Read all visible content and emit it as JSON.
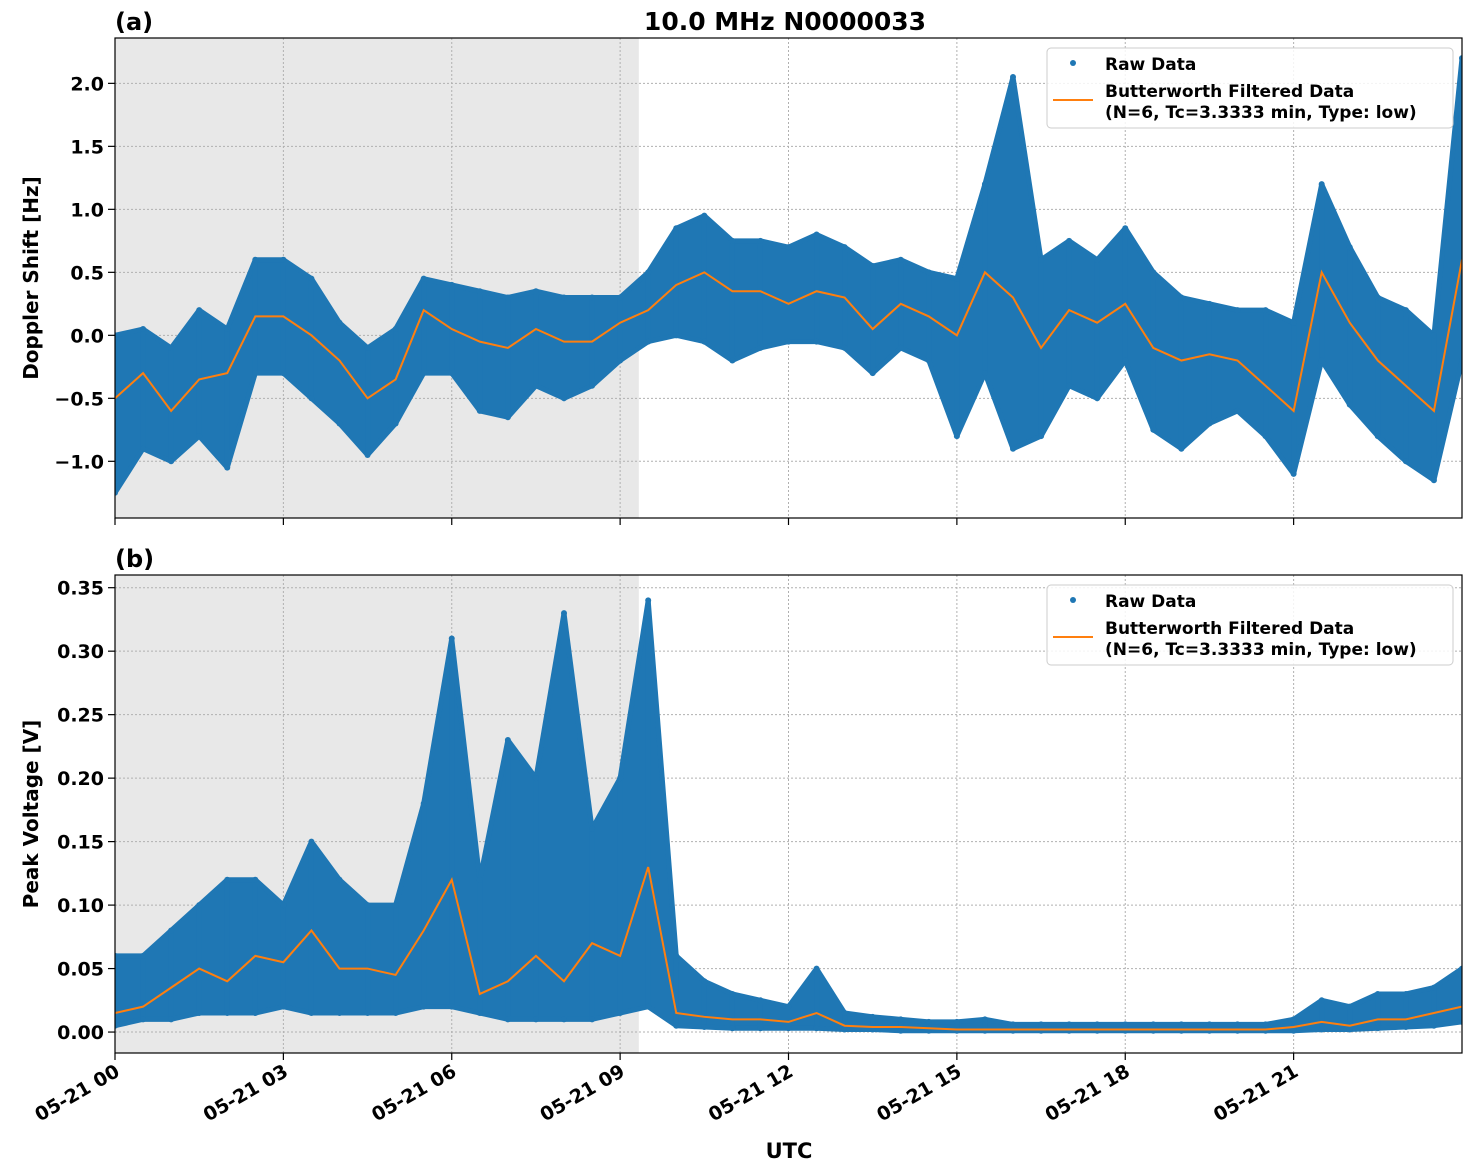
{
  "figure": {
    "title": "10.0 MHz N0000033",
    "xlabel": "UTC",
    "colors": {
      "raw": "#1f77b4",
      "filtered": "#ff7f0e",
      "shade": "#e8e8e8",
      "grid": "#b0b0b0"
    }
  },
  "chart_data": [
    {
      "type": "scatter",
      "panel_label": "(a)",
      "ylabel": "Doppler Shift [Hz]",
      "xlim": [
        "05-21 00:00",
        "05-22 00:00"
      ],
      "ylim": [
        -1.45,
        2.36
      ],
      "grid": true,
      "legend_placement": "top-right",
      "shaded_interval": [
        "05-21 00:00",
        "05-21 09:20"
      ],
      "x_ticks": [
        "05-21 00",
        "05-21 03",
        "05-21 06",
        "05-21 09",
        "05-21 12",
        "05-21 15",
        "05-21 18",
        "05-21 21"
      ],
      "y_ticks": [
        "−1.0",
        "−0.5",
        "0.0",
        "0.5",
        "1.0",
        "1.5",
        "2.0"
      ],
      "y_tick_values": [
        -1.0,
        -0.5,
        0.0,
        0.5,
        1.0,
        1.5,
        2.0
      ],
      "x_hours_utc": [
        0,
        0.5,
        1,
        1.5,
        2,
        2.5,
        3,
        3.5,
        4,
        4.5,
        5,
        5.5,
        6,
        6.5,
        7,
        7.5,
        8,
        8.5,
        9,
        9.5,
        10,
        10.5,
        11,
        11.5,
        12,
        12.5,
        13,
        13.5,
        14,
        14.5,
        15,
        15.5,
        16,
        16.5,
        17,
        17.5,
        18,
        18.5,
        19,
        19.5,
        20,
        20.5,
        21,
        21.5,
        22,
        22.5,
        23,
        23.5,
        24
      ],
      "series": [
        {
          "name": "Raw Data",
          "kind": "range",
          "max": [
            0.0,
            0.05,
            -0.1,
            0.2,
            0.05,
            0.6,
            0.6,
            0.45,
            0.1,
            -0.1,
            0.05,
            0.45,
            0.4,
            0.35,
            0.3,
            0.35,
            0.3,
            0.3,
            0.3,
            0.5,
            0.85,
            0.95,
            0.75,
            0.75,
            0.7,
            0.8,
            0.7,
            0.55,
            0.6,
            0.5,
            0.45,
            1.2,
            2.05,
            0.6,
            0.75,
            0.6,
            0.85,
            0.5,
            0.3,
            0.25,
            0.2,
            0.2,
            0.1,
            1.2,
            0.7,
            0.3,
            0.2,
            0.0,
            2.2
          ],
          "min": [
            -1.25,
            -0.9,
            -1.0,
            -0.8,
            -1.05,
            -0.3,
            -0.3,
            -0.5,
            -0.7,
            -0.95,
            -0.7,
            -0.3,
            -0.3,
            -0.6,
            -0.65,
            -0.4,
            -0.5,
            -0.4,
            -0.2,
            -0.05,
            0.0,
            -0.05,
            -0.2,
            -0.1,
            -0.05,
            -0.05,
            -0.1,
            -0.3,
            -0.1,
            -0.2,
            -0.8,
            -0.3,
            -0.9,
            -0.8,
            -0.4,
            -0.5,
            -0.2,
            -0.75,
            -0.9,
            -0.7,
            -0.6,
            -0.8,
            -1.1,
            -0.2,
            -0.55,
            -0.8,
            -1.0,
            -1.15,
            -0.2
          ]
        },
        {
          "name": "Butterworth Filtered Data\n(N=6, Tc=3.3333 min, Type: low)",
          "kind": "line",
          "values": [
            -0.5,
            -0.3,
            -0.6,
            -0.35,
            -0.3,
            0.15,
            0.15,
            0.0,
            -0.2,
            -0.5,
            -0.35,
            0.2,
            0.05,
            -0.05,
            -0.1,
            0.05,
            -0.05,
            -0.05,
            0.1,
            0.2,
            0.4,
            0.5,
            0.35,
            0.35,
            0.25,
            0.35,
            0.3,
            0.05,
            0.25,
            0.15,
            0.0,
            0.5,
            0.3,
            -0.1,
            0.2,
            0.1,
            0.25,
            -0.1,
            -0.2,
            -0.15,
            -0.2,
            -0.4,
            -0.6,
            0.5,
            0.1,
            -0.2,
            -0.4,
            -0.6,
            0.6
          ]
        }
      ],
      "legend": [
        "Raw Data",
        "Butterworth Filtered Data",
        "(N=6, Tc=3.3333 min, Type: low)"
      ]
    },
    {
      "type": "scatter",
      "panel_label": "(b)",
      "ylabel": "Peak Voltage [V]",
      "xlim": [
        "05-21 00:00",
        "05-22 00:00"
      ],
      "ylim": [
        -0.0165,
        0.36
      ],
      "grid": true,
      "legend_placement": "top-right",
      "shaded_interval": [
        "05-21 00:00",
        "05-21 09:20"
      ],
      "x_ticks": [
        "05-21 00",
        "05-21 03",
        "05-21 06",
        "05-21 09",
        "05-21 12",
        "05-21 15",
        "05-21 18",
        "05-21 21"
      ],
      "y_ticks": [
        "0.00",
        "0.05",
        "0.10",
        "0.15",
        "0.20",
        "0.25",
        "0.30",
        "0.35"
      ],
      "y_tick_values": [
        0.0,
        0.05,
        0.1,
        0.15,
        0.2,
        0.25,
        0.3,
        0.35
      ],
      "x_hours_utc": [
        0,
        0.5,
        1,
        1.5,
        2,
        2.5,
        3,
        3.5,
        4,
        4.5,
        5,
        5.5,
        6,
        6.5,
        7,
        7.5,
        8,
        8.5,
        9,
        9.5,
        10,
        10.5,
        11,
        11.5,
        12,
        12.5,
        13,
        13.5,
        14,
        14.5,
        15,
        15.5,
        16,
        16.5,
        17,
        17.5,
        18,
        18.5,
        19,
        19.5,
        20,
        20.5,
        21,
        21.5,
        22,
        22.5,
        23,
        23.5,
        24
      ],
      "series": [
        {
          "name": "Raw Data",
          "kind": "range",
          "max": [
            0.06,
            0.06,
            0.08,
            0.1,
            0.12,
            0.12,
            0.1,
            0.15,
            0.12,
            0.1,
            0.1,
            0.18,
            0.31,
            0.12,
            0.23,
            0.2,
            0.33,
            0.16,
            0.2,
            0.34,
            0.06,
            0.04,
            0.03,
            0.025,
            0.02,
            0.05,
            0.015,
            0.012,
            0.01,
            0.008,
            0.008,
            0.01,
            0.006,
            0.006,
            0.006,
            0.006,
            0.006,
            0.006,
            0.006,
            0.006,
            0.006,
            0.006,
            0.01,
            0.025,
            0.02,
            0.03,
            0.03,
            0.035,
            0.05
          ],
          "min": [
            0.005,
            0.01,
            0.01,
            0.015,
            0.015,
            0.015,
            0.02,
            0.015,
            0.015,
            0.015,
            0.015,
            0.02,
            0.02,
            0.015,
            0.01,
            0.01,
            0.01,
            0.01,
            0.015,
            0.02,
            0.005,
            0.004,
            0.003,
            0.003,
            0.003,
            0.003,
            0.002,
            0.002,
            0.001,
            0.001,
            0.001,
            0.001,
            0.001,
            0.001,
            0.001,
            0.001,
            0.001,
            0.001,
            0.001,
            0.001,
            0.001,
            0.001,
            0.001,
            0.002,
            0.002,
            0.003,
            0.004,
            0.005,
            0.008
          ]
        },
        {
          "name": "Butterworth Filtered Data\n(N=6, Tc=3.3333 min, Type: low)",
          "kind": "line",
          "values": [
            0.015,
            0.02,
            0.035,
            0.05,
            0.04,
            0.06,
            0.055,
            0.08,
            0.05,
            0.05,
            0.045,
            0.08,
            0.12,
            0.03,
            0.04,
            0.06,
            0.04,
            0.07,
            0.06,
            0.13,
            0.015,
            0.012,
            0.01,
            0.01,
            0.008,
            0.015,
            0.005,
            0.004,
            0.004,
            0.003,
            0.002,
            0.002,
            0.002,
            0.002,
            0.002,
            0.002,
            0.002,
            0.002,
            0.002,
            0.002,
            0.002,
            0.002,
            0.004,
            0.008,
            0.005,
            0.01,
            0.01,
            0.015,
            0.02
          ]
        }
      ],
      "legend": [
        "Raw Data",
        "Butterworth Filtered Data",
        "(N=6, Tc=3.3333 min, Type: low)"
      ]
    }
  ]
}
